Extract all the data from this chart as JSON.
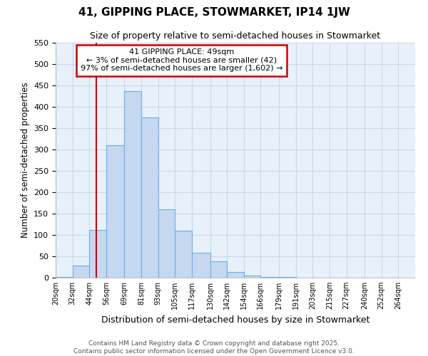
{
  "title": "41, GIPPING PLACE, STOWMARKET, IP14 1JW",
  "subtitle": "Size of property relative to semi-detached houses in Stowmarket",
  "xlabel": "Distribution of semi-detached houses by size in Stowmarket",
  "ylabel": "Number of semi-detached properties",
  "bins": [
    20,
    32,
    44,
    56,
    69,
    81,
    93,
    105,
    117,
    130,
    142,
    154,
    166,
    179,
    191,
    203,
    215,
    227,
    240,
    252,
    264
  ],
  "bin_labels": [
    "20sqm",
    "32sqm",
    "44sqm",
    "56sqm",
    "69sqm",
    "81sqm",
    "93sqm",
    "105sqm",
    "117sqm",
    "130sqm",
    "142sqm",
    "154sqm",
    "166sqm",
    "179sqm",
    "191sqm",
    "203sqm",
    "215sqm",
    "227sqm",
    "240sqm",
    "252sqm",
    "264sqm"
  ],
  "values": [
    2,
    28,
    112,
    310,
    437,
    375,
    160,
    110,
    58,
    38,
    13,
    5,
    2,
    1,
    0,
    0,
    0,
    0,
    0,
    0
  ],
  "bar_color": "#c5d8f0",
  "bar_edge_color": "#6aaee8",
  "property_size": 49,
  "property_label": "41 GIPPING PLACE: 49sqm",
  "annotation_line1": "← 3% of semi-detached houses are smaller (42)",
  "annotation_line2": "97% of semi-detached houses are larger (1,602) →",
  "vline_color": "#cc0000",
  "annotation_box_color": "#cc0000",
  "ylim": [
    0,
    550
  ],
  "yticks": [
    0,
    50,
    100,
    150,
    200,
    250,
    300,
    350,
    400,
    450,
    500,
    550
  ],
  "grid_color": "#c8d8ec",
  "bg_color": "#e8f0fa",
  "footer_line1": "Contains HM Land Registry data © Crown copyright and database right 2025.",
  "footer_line2": "Contains public sector information licensed under the Open Government Licence v3.0."
}
